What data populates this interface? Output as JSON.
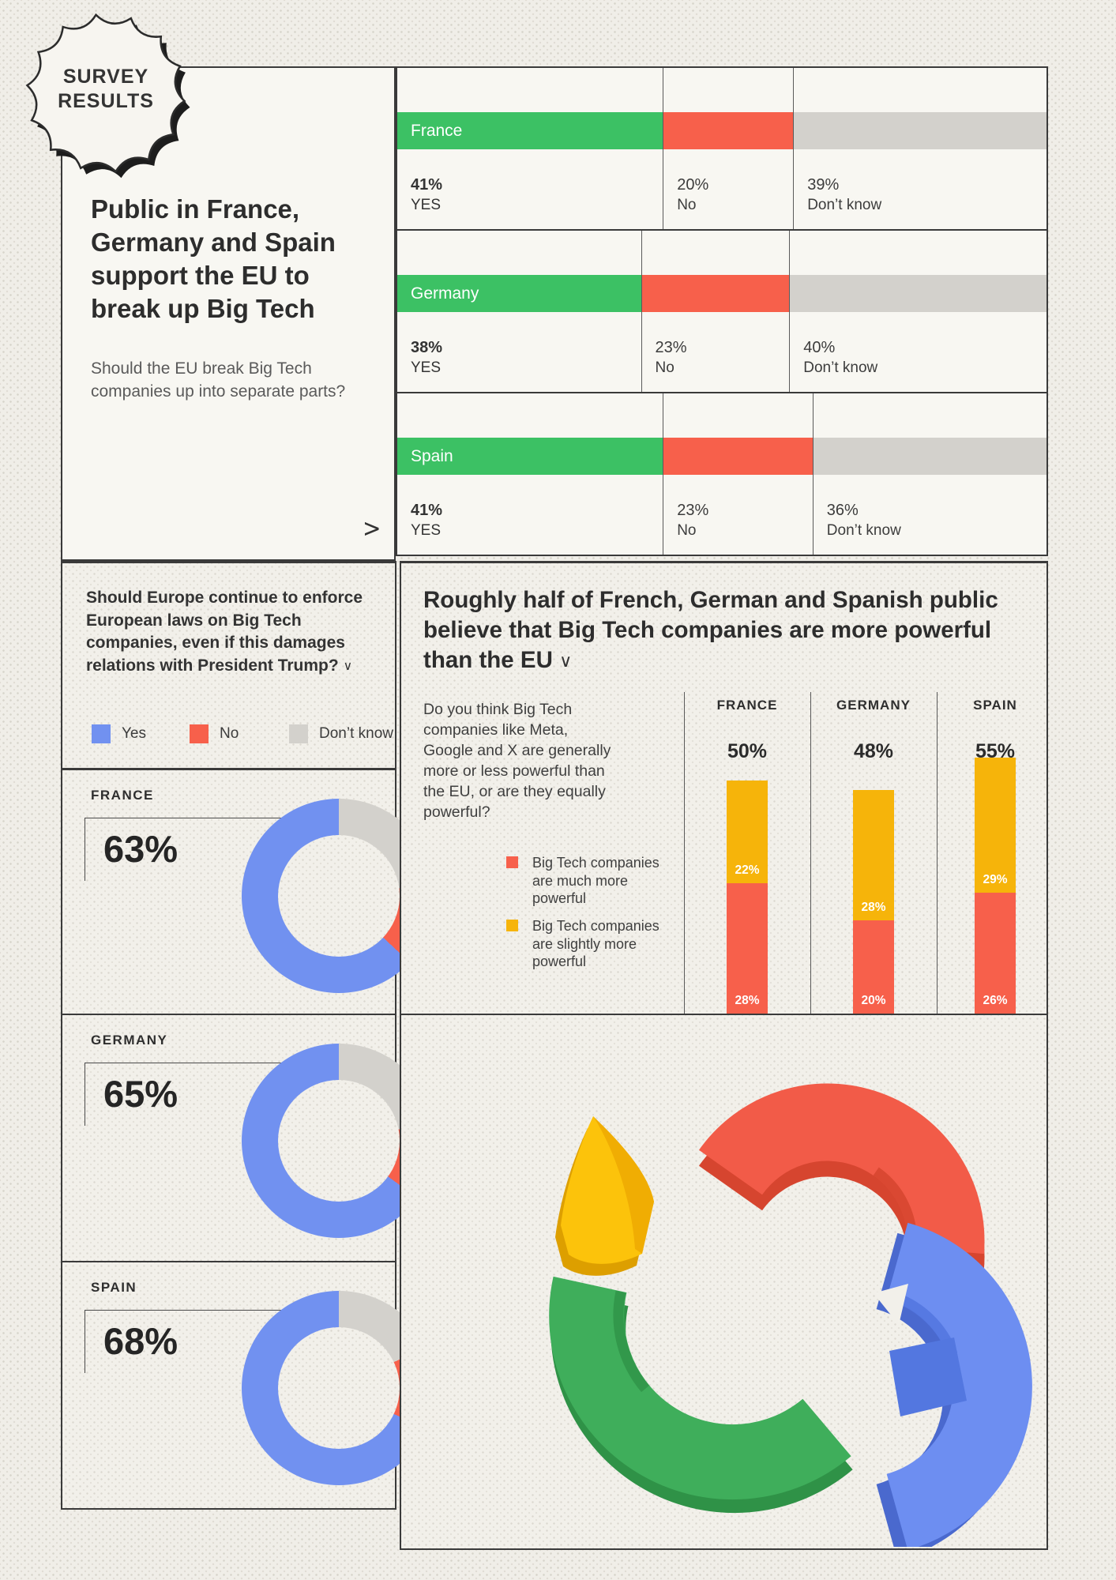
{
  "badge": {
    "line1": "SURVEY",
    "line2": "RESULTS"
  },
  "colors": {
    "green": "#3cc164",
    "red": "#f7604b",
    "gray": "#d3d1cc",
    "blue": "#7191f0",
    "yellow": "#f6b40a",
    "panel_solid": "#f8f7f2",
    "border_dark": "#3a3a3a",
    "decor_red_dark": "#d6452f",
    "decor_green": "#3fae5b",
    "decor_green_dark": "#2f9247",
    "decor_blue": "#6d8ef1",
    "decor_blue_dark": "#4a69ce",
    "decor_blue_facet": "#5377e0",
    "decor_yellow": "#fcc30b",
    "decor_yellow_facet": "#f0ad03",
    "decor_yellow_dark": "#dd9f00",
    "decor_red": "#f25b48"
  },
  "section1": {
    "title": "Public in France, Germany and Spain support the EU to break up Big Tech",
    "question": "Should the EU break Big Tech companies up into separate parts?",
    "chevron": ">",
    "yes_word": "YES",
    "no_word": "No",
    "dk_word": "Don’t know",
    "rows": [
      {
        "country": "France",
        "yes": 41,
        "no": 20,
        "dont_know": 39
      },
      {
        "country": "Germany",
        "yes": 38,
        "no": 23,
        "dont_know": 40
      },
      {
        "country": "Spain",
        "yes": 41,
        "no": 23,
        "dont_know": 36
      }
    ]
  },
  "section2": {
    "question": "Should Europe continue to enforce European laws on Big Tech companies, even if this damages relations with President Trump?",
    "chevron": "∨",
    "legend": [
      {
        "label": "Yes",
        "color": "#7191f0"
      },
      {
        "label": "No",
        "color": "#f7604b"
      },
      {
        "label": "Don’t know",
        "color": "#d3d1cc"
      }
    ],
    "donuts": [
      {
        "country": "FRANCE",
        "value_label": "63%",
        "yes": 63,
        "no": 14,
        "dont_know": 23
      },
      {
        "country": "GERMANY",
        "value_label": "65%",
        "yes": 65,
        "no": 13,
        "dont_know": 22
      },
      {
        "country": "SPAIN",
        "value_label": "68%",
        "yes": 68,
        "no": 14,
        "dont_know": 18
      }
    ]
  },
  "section3": {
    "heading": "Roughly half of French, German and Spanish public believe that Big Tech companies are more powerful than the EU",
    "chevron": "∨",
    "question": "Do you think Big Tech companies like Meta, Google and X are generally more or less powerful than the EU, or are they equally powerful?",
    "legend": [
      {
        "label": "Big Tech companies are much more powerful",
        "color": "#f7604b"
      },
      {
        "label": "Big Tech companies are slightly more powerful",
        "color": "#f6b40a"
      }
    ],
    "countries": [
      {
        "name": "FRANCE",
        "total_label": "50%",
        "much_more": 28,
        "slightly_more": 22
      },
      {
        "name": "GERMANY",
        "total_label": "48%",
        "much_more": 20,
        "slightly_more": 28
      },
      {
        "name": "SPAIN",
        "total_label": "55%",
        "much_more": 26,
        "slightly_more": 29
      }
    ]
  },
  "chart_data": [
    {
      "type": "bar",
      "title": "Should the EU break Big Tech companies up into separate parts?",
      "orientation": "horizontal-stacked",
      "categories": [
        "France",
        "Germany",
        "Spain"
      ],
      "series": [
        {
          "name": "YES",
          "color": "#3cc164",
          "values": [
            41,
            38,
            41
          ]
        },
        {
          "name": "No",
          "color": "#f7604b",
          "values": [
            20,
            23,
            23
          ]
        },
        {
          "name": "Don’t know",
          "color": "#d3d1cc",
          "values": [
            39,
            40,
            36
          ]
        }
      ],
      "unit": "%"
    },
    {
      "type": "pie",
      "subtype": "donut",
      "title": "Should Europe continue to enforce European laws on Big Tech companies, even if this damages relations with President Trump?",
      "legend_position": "top",
      "categories": [
        "Don’t know",
        "No",
        "Yes"
      ],
      "charts": [
        {
          "label": "FRANCE",
          "values": [
            23,
            14,
            63
          ],
          "highlight": "63%"
        },
        {
          "label": "GERMANY",
          "values": [
            22,
            13,
            65
          ],
          "highlight": "65%"
        },
        {
          "label": "SPAIN",
          "values": [
            18,
            14,
            68
          ],
          "highlight": "68%"
        }
      ],
      "colors": [
        "#d3d1cc",
        "#f7604b",
        "#7191f0"
      ],
      "unit": "%"
    },
    {
      "type": "bar",
      "title": "Do you think Big Tech companies like Meta, Google and X are generally more or less powerful than the EU, or are they equally powerful?",
      "orientation": "vertical-stacked",
      "categories": [
        "FRANCE",
        "GERMANY",
        "SPAIN"
      ],
      "series": [
        {
          "name": "Big Tech companies are much more powerful",
          "color": "#f7604b",
          "values": [
            28,
            20,
            26
          ]
        },
        {
          "name": "Big Tech companies are slightly more powerful",
          "color": "#f6b40a",
          "values": [
            22,
            28,
            29
          ]
        }
      ],
      "totals": [
        50,
        48,
        55
      ],
      "unit": "%"
    }
  ]
}
